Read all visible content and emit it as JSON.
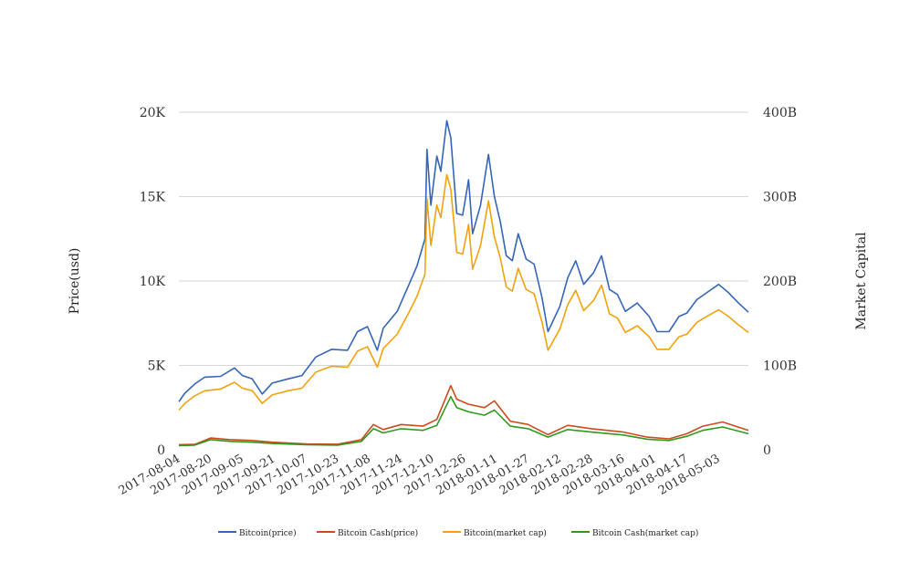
{
  "chart_data": {
    "type": "line",
    "y_left_label": "Price(usd)",
    "y_right_label": "Market Capital",
    "y_left_ticks": [
      "0",
      "5K",
      "10K",
      "15K",
      "20K"
    ],
    "y_left_tick_values": [
      0,
      5000,
      10000,
      15000,
      20000
    ],
    "y_right_ticks": [
      "0",
      "100B",
      "200B",
      "300B",
      "400B"
    ],
    "y_right_tick_values": [
      0,
      100000000000,
      200000000000,
      300000000000,
      400000000000
    ],
    "ylim_left": [
      0,
      20000
    ],
    "ylim_right": [
      0,
      400000000000
    ],
    "x_ticks": [
      "2017-08-04",
      "2017-08-20",
      "2017-09-05",
      "2017-09-21",
      "2017-10-07",
      "2017-10-23",
      "2017-11-08",
      "2017-11-24",
      "2017-12-10",
      "2017-12-26",
      "2018-01-11",
      "2018-01-27",
      "2018-02-12",
      "2018-02-28",
      "2018-03-16",
      "2018-04-01",
      "2018-04-17",
      "2018-05-03"
    ],
    "x_range": [
      "2017-08-04",
      "2018-05-18"
    ],
    "grid": true,
    "legend_position": "bottom",
    "series": [
      {
        "name": "Bitcoin(price)",
        "axis": "left",
        "color": "#3465b8",
        "points": [
          [
            "2017-08-04",
            2850
          ],
          [
            "2017-08-07",
            3350
          ],
          [
            "2017-08-12",
            3900
          ],
          [
            "2017-08-17",
            4300
          ],
          [
            "2017-08-25",
            4350
          ],
          [
            "2017-09-01",
            4850
          ],
          [
            "2017-09-05",
            4400
          ],
          [
            "2017-09-10",
            4200
          ],
          [
            "2017-09-15",
            3300
          ],
          [
            "2017-09-20",
            3950
          ],
          [
            "2017-09-28",
            4200
          ],
          [
            "2017-10-05",
            4400
          ],
          [
            "2017-10-12",
            5500
          ],
          [
            "2017-10-20",
            5950
          ],
          [
            "2017-10-28",
            5900
          ],
          [
            "2017-11-02",
            7000
          ],
          [
            "2017-11-07",
            7300
          ],
          [
            "2017-11-12",
            5900
          ],
          [
            "2017-11-15",
            7200
          ],
          [
            "2017-11-22",
            8200
          ],
          [
            "2017-11-28",
            9800
          ],
          [
            "2017-12-02",
            10900
          ],
          [
            "2017-12-06",
            12500
          ],
          [
            "2017-12-07",
            17800
          ],
          [
            "2017-12-09",
            14500
          ],
          [
            "2017-12-12",
            17400
          ],
          [
            "2017-12-14",
            16500
          ],
          [
            "2017-12-17",
            19500
          ],
          [
            "2017-12-19",
            18500
          ],
          [
            "2017-12-22",
            14000
          ],
          [
            "2017-12-25",
            13900
          ],
          [
            "2017-12-28",
            16000
          ],
          [
            "2017-12-30",
            12800
          ],
          [
            "2018-01-03",
            14500
          ],
          [
            "2018-01-07",
            17500
          ],
          [
            "2018-01-10",
            15000
          ],
          [
            "2018-01-13",
            13500
          ],
          [
            "2018-01-16",
            11500
          ],
          [
            "2018-01-19",
            11200
          ],
          [
            "2018-01-22",
            12800
          ],
          [
            "2018-01-26",
            11300
          ],
          [
            "2018-01-30",
            11000
          ],
          [
            "2018-02-03",
            9000
          ],
          [
            "2018-02-06",
            7000
          ],
          [
            "2018-02-12",
            8500
          ],
          [
            "2018-02-16",
            10200
          ],
          [
            "2018-02-20",
            11200
          ],
          [
            "2018-02-24",
            9800
          ],
          [
            "2018-03-01",
            10500
          ],
          [
            "2018-03-05",
            11500
          ],
          [
            "2018-03-09",
            9500
          ],
          [
            "2018-03-13",
            9200
          ],
          [
            "2018-03-17",
            8200
          ],
          [
            "2018-03-23",
            8700
          ],
          [
            "2018-03-29",
            7900
          ],
          [
            "2018-04-02",
            7000
          ],
          [
            "2018-04-08",
            7000
          ],
          [
            "2018-04-13",
            7900
          ],
          [
            "2018-04-17",
            8100
          ],
          [
            "2018-04-22",
            8900
          ],
          [
            "2018-04-27",
            9300
          ],
          [
            "2018-05-03",
            9800
          ],
          [
            "2018-05-08",
            9300
          ],
          [
            "2018-05-13",
            8700
          ],
          [
            "2018-05-18",
            8150
          ]
        ]
      },
      {
        "name": "Bitcoin Cash(price)",
        "axis": "left",
        "color": "#cc4a1e",
        "points": [
          [
            "2017-08-04",
            300
          ],
          [
            "2017-08-12",
            320
          ],
          [
            "2017-08-20",
            700
          ],
          [
            "2017-08-30",
            600
          ],
          [
            "2017-09-10",
            550
          ],
          [
            "2017-09-20",
            450
          ],
          [
            "2017-10-07",
            350
          ],
          [
            "2017-10-23",
            330
          ],
          [
            "2017-11-04",
            600
          ],
          [
            "2017-11-10",
            1500
          ],
          [
            "2017-11-15",
            1200
          ],
          [
            "2017-11-24",
            1500
          ],
          [
            "2017-12-05",
            1400
          ],
          [
            "2017-12-12",
            1800
          ],
          [
            "2017-12-19",
            3800
          ],
          [
            "2017-12-22",
            3000
          ],
          [
            "2017-12-28",
            2700
          ],
          [
            "2018-01-05",
            2500
          ],
          [
            "2018-01-10",
            2900
          ],
          [
            "2018-01-18",
            1700
          ],
          [
            "2018-01-27",
            1500
          ],
          [
            "2018-02-06",
            900
          ],
          [
            "2018-02-16",
            1450
          ],
          [
            "2018-02-28",
            1250
          ],
          [
            "2018-03-16",
            1050
          ],
          [
            "2018-03-28",
            750
          ],
          [
            "2018-04-08",
            650
          ],
          [
            "2018-04-17",
            950
          ],
          [
            "2018-04-25",
            1400
          ],
          [
            "2018-05-05",
            1650
          ],
          [
            "2018-05-18",
            1150
          ]
        ]
      },
      {
        "name": "Bitcoin(market cap)",
        "axis": "right",
        "color": "#f2a20c",
        "points": [
          [
            "2017-08-04",
            47000000000
          ],
          [
            "2017-08-07",
            55000000000
          ],
          [
            "2017-08-12",
            64000000000
          ],
          [
            "2017-08-17",
            70000000000
          ],
          [
            "2017-08-25",
            72000000000
          ],
          [
            "2017-09-01",
            80000000000
          ],
          [
            "2017-09-05",
            73000000000
          ],
          [
            "2017-09-10",
            70000000000
          ],
          [
            "2017-09-15",
            55000000000
          ],
          [
            "2017-09-20",
            65000000000
          ],
          [
            "2017-09-28",
            70000000000
          ],
          [
            "2017-10-05",
            73000000000
          ],
          [
            "2017-10-12",
            92000000000
          ],
          [
            "2017-10-20",
            99000000000
          ],
          [
            "2017-10-28",
            98000000000
          ],
          [
            "2017-11-02",
            117000000000
          ],
          [
            "2017-11-07",
            122000000000
          ],
          [
            "2017-11-12",
            98000000000
          ],
          [
            "2017-11-15",
            120000000000
          ],
          [
            "2017-11-22",
            137000000000
          ],
          [
            "2017-11-28",
            163000000000
          ],
          [
            "2017-12-02",
            182000000000
          ],
          [
            "2017-12-06",
            208000000000
          ],
          [
            "2017-12-07",
            298000000000
          ],
          [
            "2017-12-09",
            242000000000
          ],
          [
            "2017-12-12",
            290000000000
          ],
          [
            "2017-12-14",
            275000000000
          ],
          [
            "2017-12-17",
            326000000000
          ],
          [
            "2017-12-19",
            309000000000
          ],
          [
            "2017-12-22",
            234000000000
          ],
          [
            "2017-12-25",
            232000000000
          ],
          [
            "2017-12-28",
            267000000000
          ],
          [
            "2017-12-30",
            214000000000
          ],
          [
            "2018-01-03",
            242000000000
          ],
          [
            "2018-01-07",
            295000000000
          ],
          [
            "2018-01-10",
            252000000000
          ],
          [
            "2018-01-13",
            227000000000
          ],
          [
            "2018-01-16",
            193000000000
          ],
          [
            "2018-01-19",
            188000000000
          ],
          [
            "2018-01-22",
            215000000000
          ],
          [
            "2018-01-26",
            190000000000
          ],
          [
            "2018-01-30",
            185000000000
          ],
          [
            "2018-02-03",
            151000000000
          ],
          [
            "2018-02-06",
            118000000000
          ],
          [
            "2018-02-12",
            143000000000
          ],
          [
            "2018-02-16",
            172000000000
          ],
          [
            "2018-02-20",
            189000000000
          ],
          [
            "2018-02-24",
            165000000000
          ],
          [
            "2018-03-01",
            177000000000
          ],
          [
            "2018-03-05",
            195000000000
          ],
          [
            "2018-03-09",
            161000000000
          ],
          [
            "2018-03-13",
            156000000000
          ],
          [
            "2018-03-17",
            139000000000
          ],
          [
            "2018-03-23",
            147000000000
          ],
          [
            "2018-03-29",
            134000000000
          ],
          [
            "2018-04-02",
            119000000000
          ],
          [
            "2018-04-08",
            119000000000
          ],
          [
            "2018-04-13",
            134000000000
          ],
          [
            "2018-04-17",
            137000000000
          ],
          [
            "2018-04-22",
            151000000000
          ],
          [
            "2018-04-27",
            158000000000
          ],
          [
            "2018-05-03",
            166000000000
          ],
          [
            "2018-05-08",
            158000000000
          ],
          [
            "2018-05-13",
            148000000000
          ],
          [
            "2018-05-18",
            139000000000
          ]
        ]
      },
      {
        "name": "Bitcoin Cash(market cap)",
        "axis": "right",
        "color": "#2e9a1c",
        "points": [
          [
            "2017-08-04",
            5000000000
          ],
          [
            "2017-08-12",
            5500000000
          ],
          [
            "2017-08-20",
            12000000000
          ],
          [
            "2017-08-30",
            10000000000
          ],
          [
            "2017-09-10",
            9000000000
          ],
          [
            "2017-09-20",
            7500000000
          ],
          [
            "2017-10-07",
            6000000000
          ],
          [
            "2017-10-23",
            5500000000
          ],
          [
            "2017-11-04",
            10000000000
          ],
          [
            "2017-11-10",
            25000000000
          ],
          [
            "2017-11-15",
            20000000000
          ],
          [
            "2017-11-24",
            25000000000
          ],
          [
            "2017-12-05",
            23000000000
          ],
          [
            "2017-12-12",
            29000000000
          ],
          [
            "2017-12-19",
            63000000000
          ],
          [
            "2017-12-22",
            50000000000
          ],
          [
            "2017-12-28",
            45000000000
          ],
          [
            "2018-01-05",
            41000000000
          ],
          [
            "2018-01-10",
            47000000000
          ],
          [
            "2018-01-18",
            28000000000
          ],
          [
            "2018-01-27",
            25000000000
          ],
          [
            "2018-02-06",
            15000000000
          ],
          [
            "2018-02-16",
            24000000000
          ],
          [
            "2018-02-28",
            21000000000
          ],
          [
            "2018-03-16",
            17500000000
          ],
          [
            "2018-03-28",
            12500000000
          ],
          [
            "2018-04-08",
            11000000000
          ],
          [
            "2018-04-17",
            16000000000
          ],
          [
            "2018-04-25",
            23000000000
          ],
          [
            "2018-05-05",
            27000000000
          ],
          [
            "2018-05-18",
            19000000000
          ]
        ]
      }
    ]
  }
}
